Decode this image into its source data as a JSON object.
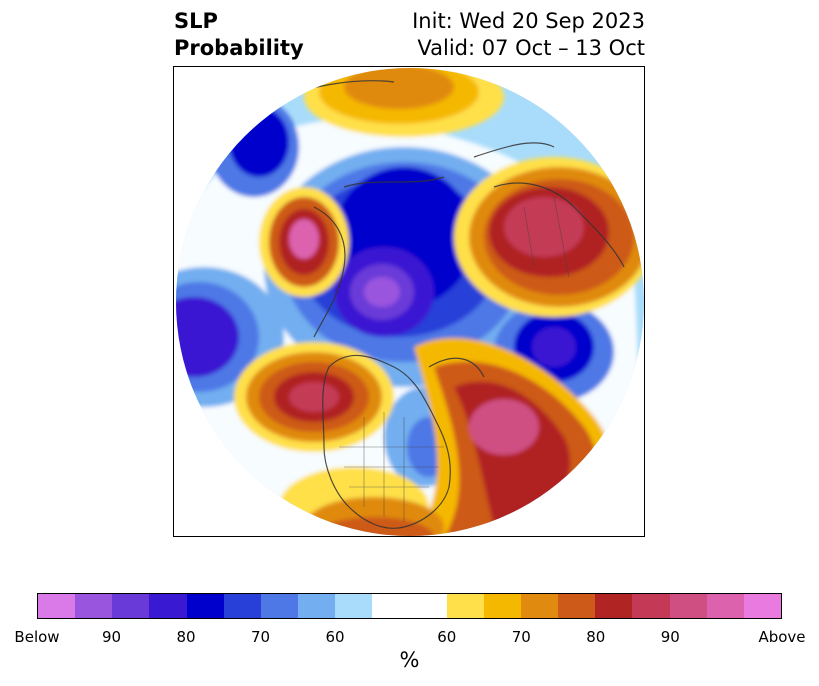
{
  "title": {
    "left_line1": "SLP",
    "left_line2": "Probability",
    "right_line1": "Init: Wed 20 Sep 2023",
    "right_line2": "Valid: 07 Oct – 13 Oct"
  },
  "colorbar": {
    "unit": "%",
    "tick_labels": [
      "Below",
      "90",
      "80",
      "70",
      "60",
      "60",
      "70",
      "80",
      "90",
      "Above"
    ],
    "colors": [
      "#d97ae8",
      "#9a55df",
      "#6a3ad8",
      "#3a19d2",
      "#0000cc",
      "#2840d8",
      "#4d78e6",
      "#72aef0",
      "#a9dcfa",
      "#ffffff",
      "#ffe04a",
      "#f5b800",
      "#e08a10",
      "#cd5a18",
      "#b02424",
      "#c43a56",
      "#cf4f82",
      "#dd62ae",
      "#e87ae0"
    ],
    "color_proportions": [
      1,
      1,
      1,
      1,
      1,
      1,
      1,
      1,
      1,
      2,
      1,
      1,
      1,
      1,
      1,
      1,
      1,
      1,
      1
    ]
  },
  "map": {
    "projection": "north-polar-stereographic",
    "field": "SLP probability",
    "features": [
      "coastlines",
      "country-borders",
      "state-borders"
    ]
  }
}
